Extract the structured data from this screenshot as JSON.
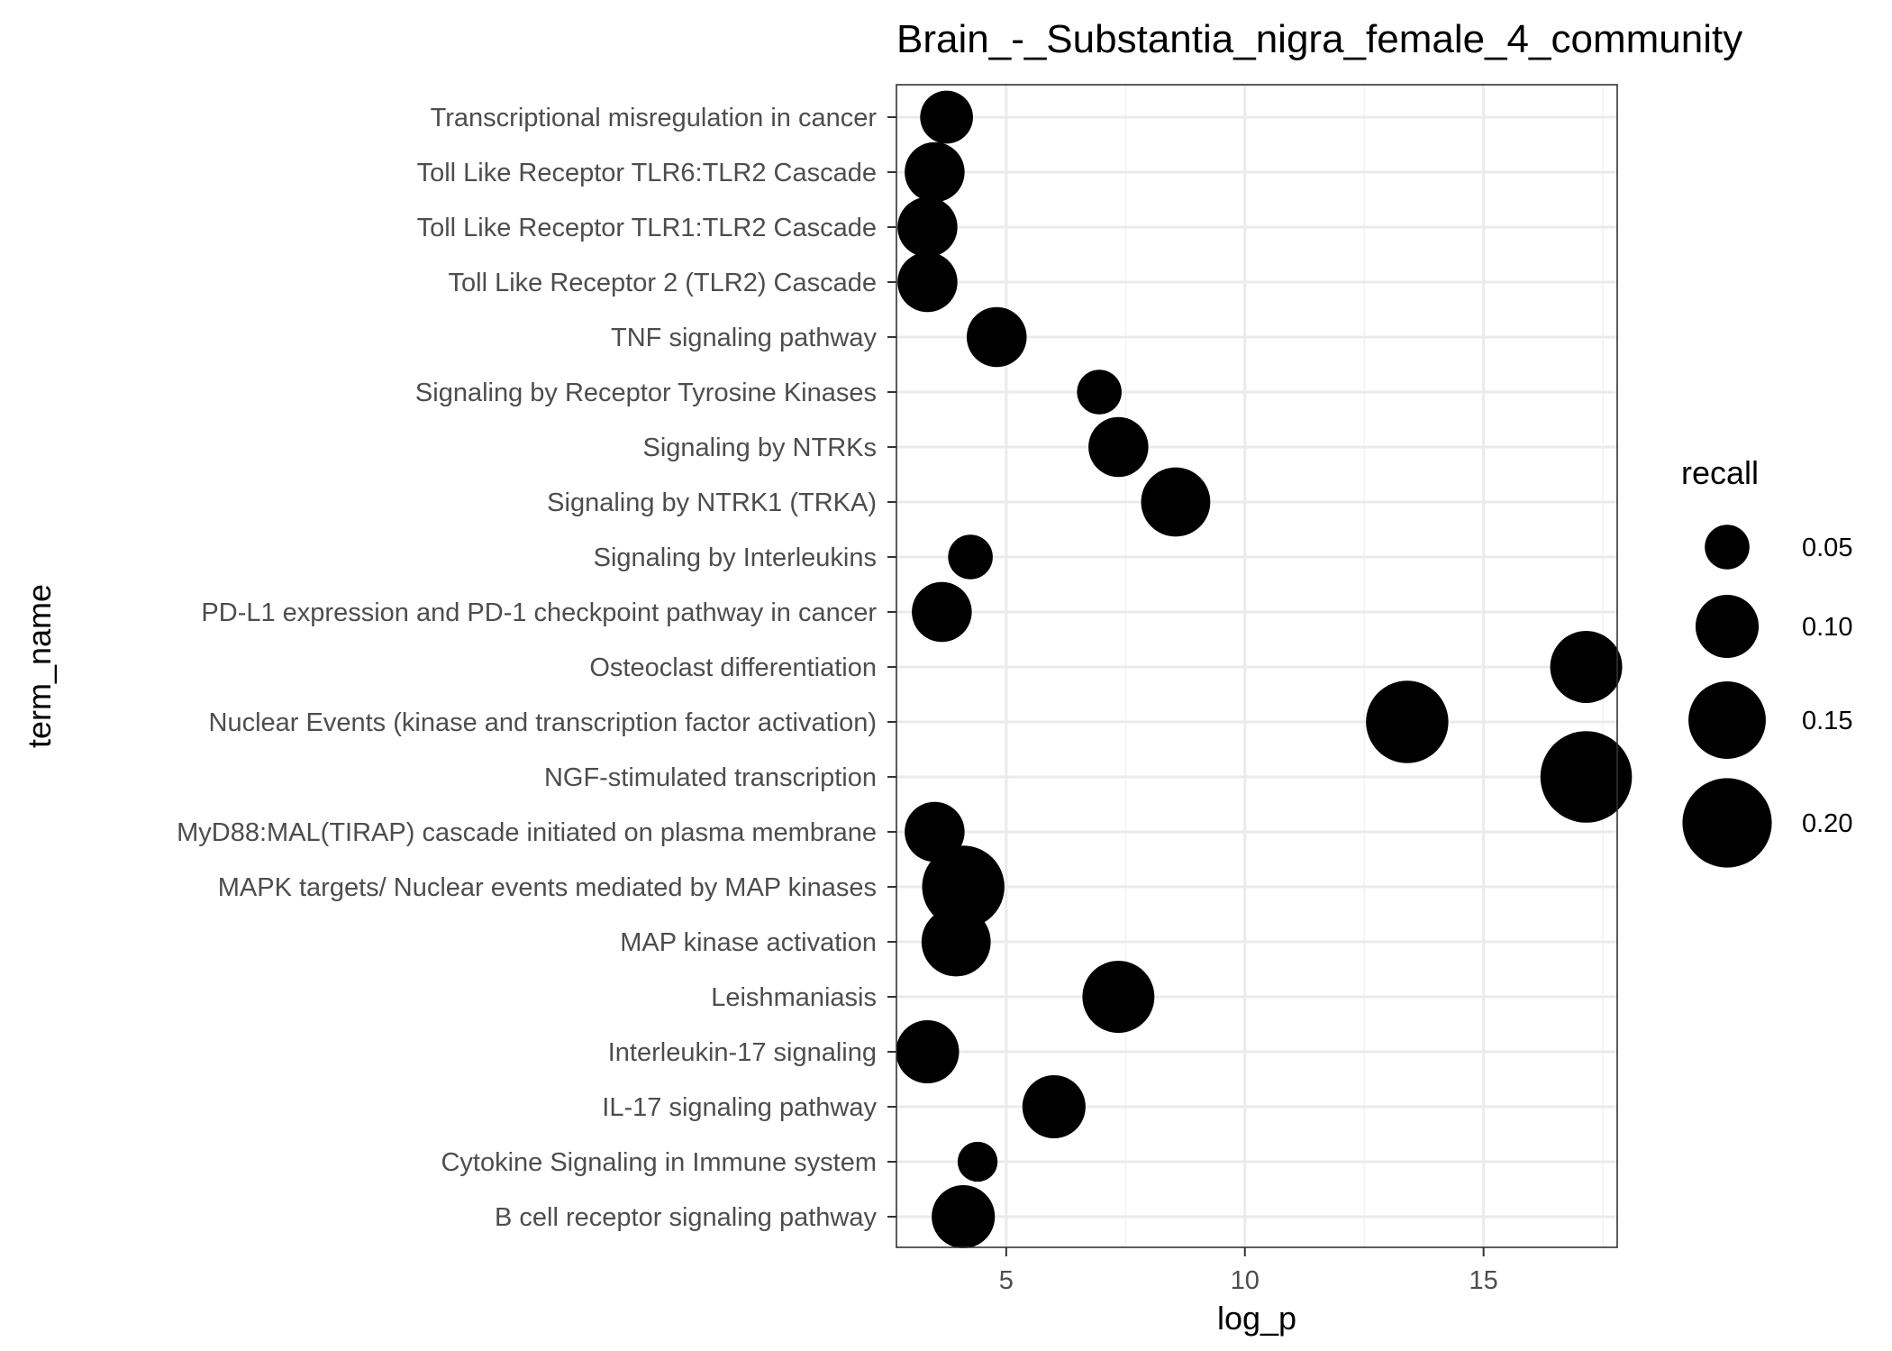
{
  "chart_data": {
    "type": "scatter",
    "title": "Brain_-_Substantia_nigra_female_4_community",
    "xlabel": "log_p",
    "ylabel": "term_name",
    "xlim": [
      2.7,
      17.8
    ],
    "x_ticks": [
      5,
      10,
      15
    ],
    "x_tick_labels": [
      "5",
      "10",
      "15"
    ],
    "grid": true,
    "size_variable": "recall",
    "legend": {
      "title": "recall",
      "position": "right",
      "entries": [
        {
          "label": "0.05",
          "value": 0.05
        },
        {
          "label": "0.10",
          "value": 0.1
        },
        {
          "label": "0.15",
          "value": 0.15
        },
        {
          "label": "0.20",
          "value": 0.2
        }
      ]
    },
    "categories": [
      "Transcriptional misregulation in cancer",
      "Toll Like Receptor TLR6:TLR2 Cascade",
      "Toll Like Receptor TLR1:TLR2 Cascade",
      "Toll Like Receptor 2 (TLR2) Cascade",
      "TNF signaling pathway",
      "Signaling by Receptor Tyrosine Kinases",
      "Signaling by NTRKs",
      "Signaling by NTRK1 (TRKA)",
      "Signaling by Interleukins",
      "PD-L1 expression and PD-1 checkpoint pathway in cancer",
      "Osteoclast differentiation",
      "Nuclear Events (kinase and transcription factor activation)",
      "NGF-stimulated transcription",
      "MyD88:MAL(TIRAP) cascade initiated on plasma membrane",
      "MAPK targets/ Nuclear events mediated by MAP kinases",
      "MAP kinase activation",
      "Leishmaniasis",
      "Interleukin-17 signaling",
      "IL-17 signaling pathway",
      "Cytokine Signaling in Immune system",
      "B cell receptor signaling pathway"
    ],
    "points": [
      {
        "term": "Transcriptional misregulation in cancer",
        "log_p": 3.75,
        "recall": 0.07
      },
      {
        "term": "Toll Like Receptor TLR6:TLR2 Cascade",
        "log_p": 3.5,
        "recall": 0.09
      },
      {
        "term": "Toll Like Receptor TLR1:TLR2 Cascade",
        "log_p": 3.35,
        "recall": 0.09
      },
      {
        "term": "Toll Like Receptor 2 (TLR2) Cascade",
        "log_p": 3.35,
        "recall": 0.09
      },
      {
        "term": "TNF signaling pathway",
        "log_p": 4.8,
        "recall": 0.09
      },
      {
        "term": "Signaling by Receptor Tyrosine Kinases",
        "log_p": 6.95,
        "recall": 0.05
      },
      {
        "term": "Signaling by NTRKs",
        "log_p": 7.35,
        "recall": 0.09
      },
      {
        "term": "Signaling by NTRK1 (TRKA)",
        "log_p": 8.55,
        "recall": 0.12
      },
      {
        "term": "Signaling by Interleukins",
        "log_p": 4.25,
        "recall": 0.05
      },
      {
        "term": "PD-L1 expression and PD-1 checkpoint pathway in cancer",
        "log_p": 3.65,
        "recall": 0.09
      },
      {
        "term": "Osteoclast differentiation",
        "log_p": 17.15,
        "recall": 0.13
      },
      {
        "term": "Nuclear Events (kinase and transcription factor activation)",
        "log_p": 13.4,
        "recall": 0.17
      },
      {
        "term": "NGF-stimulated transcription",
        "log_p": 17.15,
        "recall": 0.21
      },
      {
        "term": "MyD88:MAL(TIRAP) cascade initiated on plasma membrane",
        "log_p": 3.5,
        "recall": 0.09
      },
      {
        "term": "MAPK targets/ Nuclear events mediated by MAP kinases",
        "log_p": 4.1,
        "recall": 0.17
      },
      {
        "term": "MAP kinase activation",
        "log_p": 3.95,
        "recall": 0.12
      },
      {
        "term": "Leishmaniasis",
        "log_p": 7.35,
        "recall": 0.13
      },
      {
        "term": "Interleukin-17 signaling",
        "log_p": 3.35,
        "recall": 0.1
      },
      {
        "term": "IL-17 signaling pathway",
        "log_p": 6.0,
        "recall": 0.1
      },
      {
        "term": "Cytokine Signaling in Immune system",
        "log_p": 4.4,
        "recall": 0.04
      },
      {
        "term": "B cell receptor signaling pathway",
        "log_p": 4.1,
        "recall": 0.1
      }
    ],
    "colors": {
      "point": "#000000",
      "grid_major": "#ebebeb",
      "grid_minor": "#f3f3f3",
      "panel_border": "#333333",
      "axis_text": "#4d4d4d",
      "axis_title": "#000000"
    }
  }
}
